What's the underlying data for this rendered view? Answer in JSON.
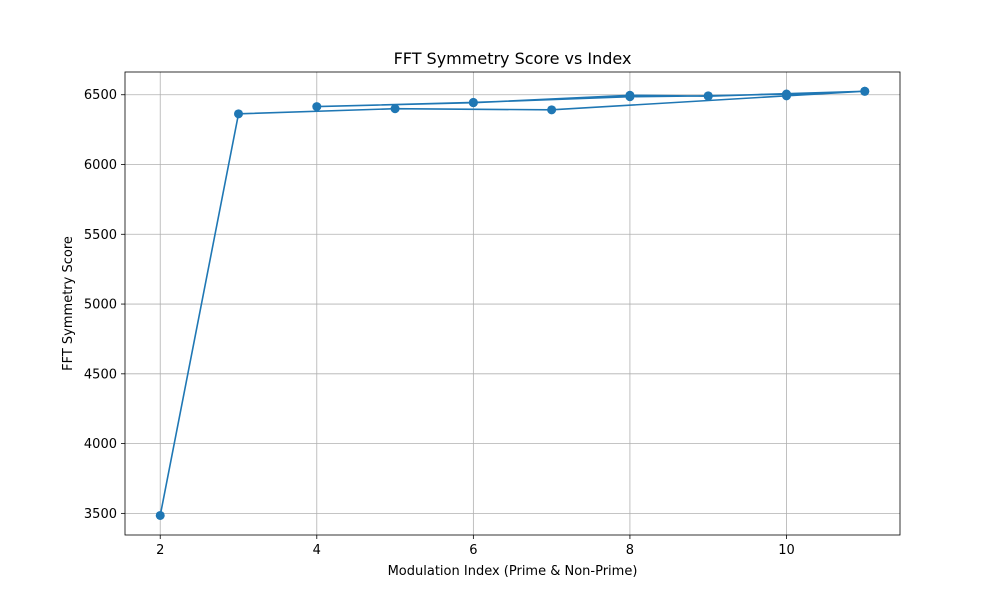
{
  "chart_data": {
    "type": "line",
    "title": "FFT Symmetry Score vs Index",
    "xlabel": "Modulation Index (Prime & Non-Prime)",
    "ylabel": "FFT Symmetry Score",
    "xlim": [
      1.55,
      11.45
    ],
    "ylim": [
      3345,
      6663
    ],
    "xticks": [
      2,
      4,
      6,
      8,
      10
    ],
    "yticks": [
      3500,
      4000,
      4500,
      5000,
      5500,
      6000,
      6500
    ],
    "grid": true,
    "series": [
      {
        "color": "#1f77b4",
        "marker": "circle",
        "points": [
          {
            "x": 2,
            "y": 3485
          },
          {
            "x": 3,
            "y": 6363
          },
          {
            "x": 5,
            "y": 6400
          },
          {
            "x": 7,
            "y": 6392
          },
          {
            "x": 10,
            "y": 6492
          },
          {
            "x": 11,
            "y": 6525
          },
          {
            "x": 9,
            "y": 6490
          },
          {
            "x": 8,
            "y": 6496
          },
          {
            "x": 6,
            "y": 6443
          },
          {
            "x": 4,
            "y": 6415
          },
          {
            "x": 6,
            "y": 6445
          },
          {
            "x": 8,
            "y": 6486
          },
          {
            "x": 9,
            "y": 6492
          },
          {
            "x": 10,
            "y": 6505
          },
          {
            "x": 11,
            "y": 6525
          }
        ]
      }
    ]
  }
}
